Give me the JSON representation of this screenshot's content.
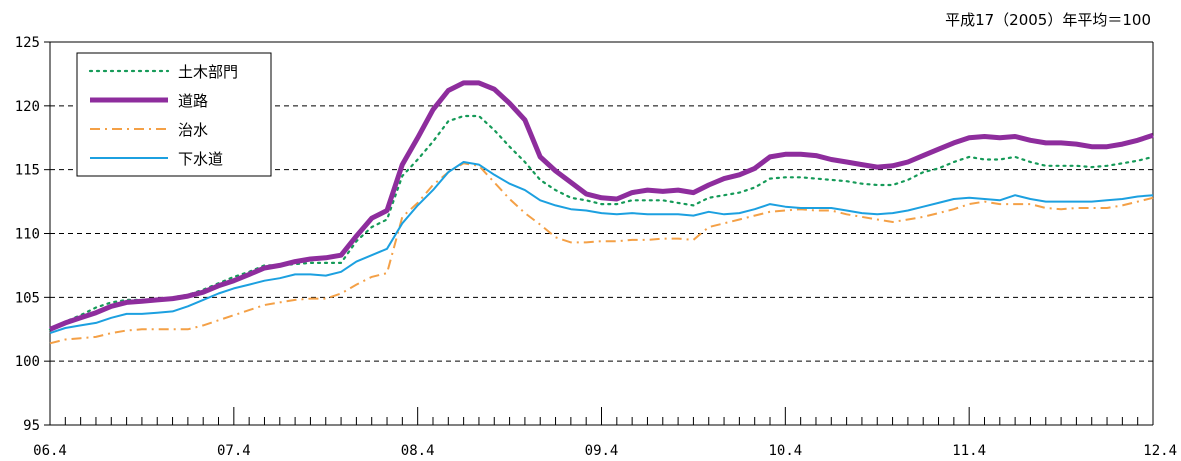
{
  "note": "平成17（2005）年平均＝100",
  "chart_data": {
    "type": "line",
    "ylim": [
      95,
      125
    ],
    "yticks": [
      "95",
      "100",
      "105",
      "110",
      "115",
      "120",
      "125"
    ],
    "xticklabels": [
      "06.4",
      "07.4",
      "08.4",
      "09.4",
      "10.4",
      "11.4",
      "12.4"
    ],
    "x_months": 73,
    "grid": "horizontal-dashed",
    "legend_position": "top-left",
    "series": [
      {
        "name": "土木部門",
        "color": "#159a58",
        "style": "dotted",
        "values": [
          102.5,
          103.1,
          103.6,
          104.2,
          104.6,
          104.8,
          104.8,
          104.8,
          105.0,
          105.2,
          105.6,
          106.1,
          106.6,
          107.0,
          107.5,
          107.5,
          107.6,
          107.7,
          107.7,
          107.7,
          109.4,
          110.5,
          111.1,
          114.5,
          115.8,
          117.2,
          118.8,
          119.2,
          119.2,
          118.1,
          116.8,
          115.6,
          114.2,
          113.4,
          112.8,
          112.6,
          112.3,
          112.3,
          112.6,
          112.6,
          112.6,
          112.4,
          112.2,
          112.8,
          113.0,
          113.2,
          113.6,
          114.3,
          114.4,
          114.4,
          114.3,
          114.2,
          114.1,
          113.9,
          113.8,
          113.8,
          114.2,
          114.8,
          115.1,
          115.6,
          116.0,
          115.8,
          115.8,
          116.0,
          115.6,
          115.3,
          115.3,
          115.3,
          115.2,
          115.3,
          115.5,
          115.7,
          116.0
        ]
      },
      {
        "name": "道路",
        "color": "#8e2d9d",
        "style": "solid-thick",
        "values": [
          102.5,
          103.0,
          103.4,
          103.8,
          104.3,
          104.6,
          104.7,
          104.8,
          104.9,
          105.1,
          105.4,
          105.9,
          106.3,
          106.8,
          107.3,
          107.5,
          107.8,
          108.0,
          108.1,
          108.3,
          109.8,
          111.2,
          111.8,
          115.4,
          117.5,
          119.7,
          121.2,
          121.8,
          121.8,
          121.3,
          120.2,
          118.9,
          116.0,
          114.9,
          114.0,
          113.1,
          112.8,
          112.7,
          113.2,
          113.4,
          113.3,
          113.4,
          113.2,
          113.8,
          114.3,
          114.6,
          115.1,
          116.0,
          116.2,
          116.2,
          116.1,
          115.8,
          115.6,
          115.4,
          115.2,
          115.3,
          115.6,
          116.1,
          116.6,
          117.1,
          117.5,
          117.6,
          117.5,
          117.6,
          117.3,
          117.1,
          117.1,
          117.0,
          116.8,
          116.8,
          117.0,
          117.3,
          117.7
        ]
      },
      {
        "name": "治水",
        "color": "#f4a046",
        "style": "dash-dot",
        "values": [
          101.4,
          101.7,
          101.8,
          101.9,
          102.2,
          102.4,
          102.5,
          102.5,
          102.5,
          102.5,
          102.8,
          103.2,
          103.6,
          104.0,
          104.4,
          104.6,
          104.8,
          104.9,
          104.9,
          105.3,
          106.0,
          106.6,
          106.9,
          111.3,
          112.4,
          113.8,
          114.8,
          115.5,
          115.3,
          114.0,
          112.7,
          111.6,
          110.7,
          109.7,
          109.3,
          109.3,
          109.4,
          109.4,
          109.5,
          109.5,
          109.6,
          109.6,
          109.5,
          110.5,
          110.8,
          111.1,
          111.4,
          111.7,
          111.8,
          111.9,
          111.8,
          111.8,
          111.5,
          111.3,
          111.1,
          110.9,
          111.1,
          111.3,
          111.6,
          111.9,
          112.3,
          112.5,
          112.3,
          112.3,
          112.3,
          112.0,
          111.9,
          112.0,
          112.0,
          112.0,
          112.2,
          112.5,
          112.8
        ]
      },
      {
        "name": "下水道",
        "color": "#1ca0e0",
        "style": "solid",
        "values": [
          102.2,
          102.6,
          102.8,
          103.0,
          103.4,
          103.7,
          103.7,
          103.8,
          103.9,
          104.3,
          104.8,
          105.3,
          105.7,
          106.0,
          106.3,
          106.5,
          106.8,
          106.8,
          106.7,
          107.0,
          107.8,
          108.3,
          108.8,
          110.8,
          112.2,
          113.4,
          114.8,
          115.6,
          115.4,
          114.6,
          113.9,
          113.4,
          112.6,
          112.2,
          111.9,
          111.8,
          111.6,
          111.5,
          111.6,
          111.5,
          111.5,
          111.5,
          111.4,
          111.7,
          111.5,
          111.6,
          111.9,
          112.3,
          112.1,
          112.0,
          112.0,
          112.0,
          111.8,
          111.6,
          111.5,
          111.6,
          111.8,
          112.1,
          112.4,
          112.7,
          112.8,
          112.7,
          112.6,
          113.0,
          112.7,
          112.5,
          112.5,
          112.5,
          112.5,
          112.6,
          112.7,
          112.9,
          113.0
        ]
      }
    ]
  }
}
